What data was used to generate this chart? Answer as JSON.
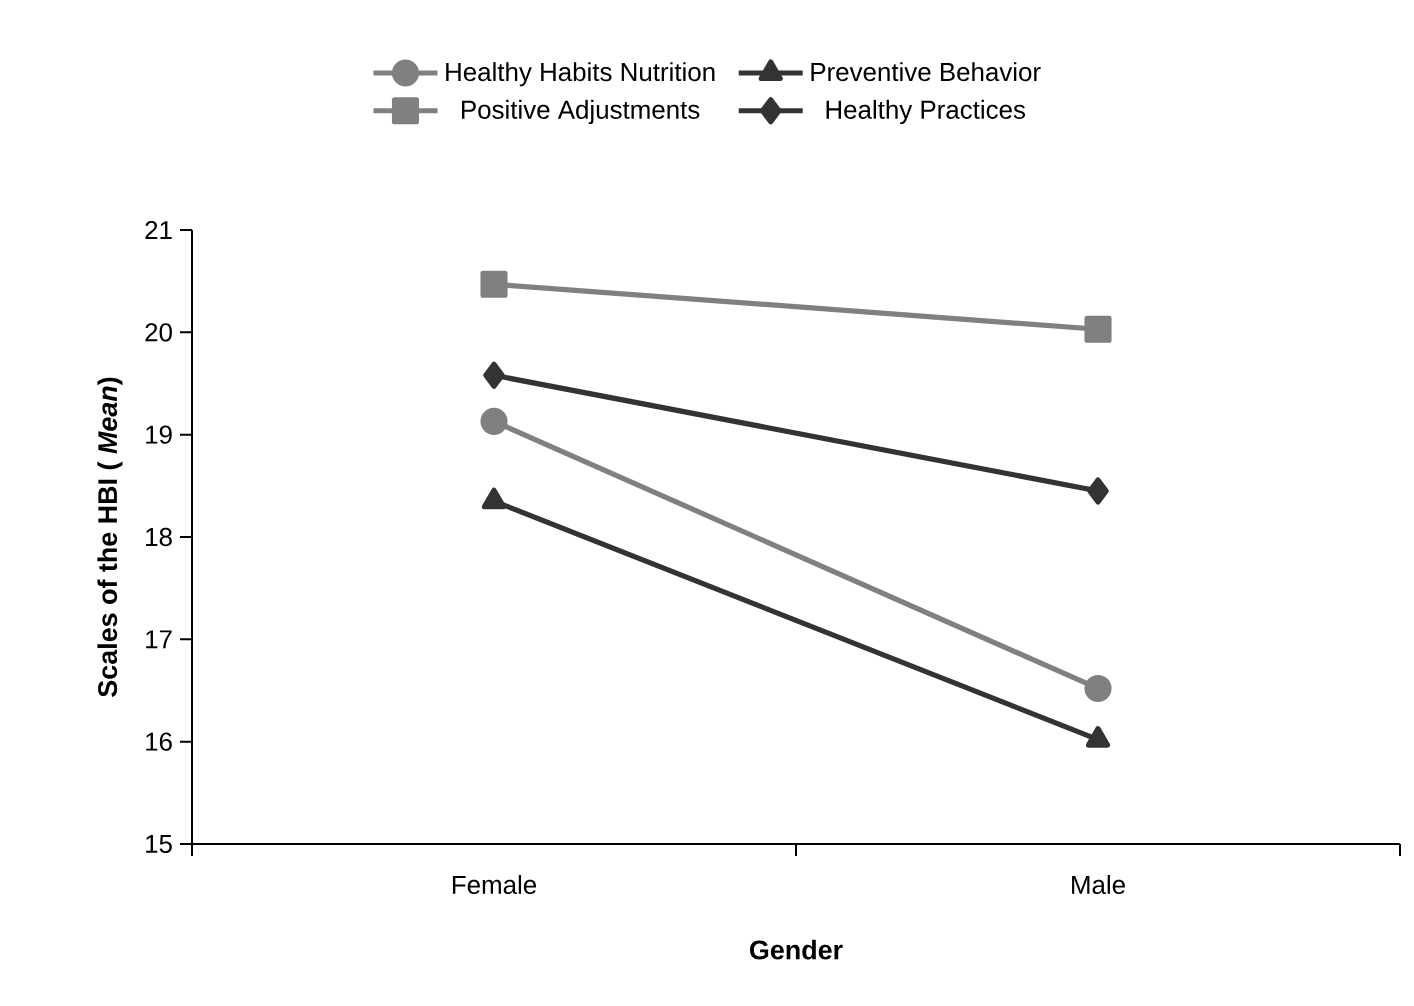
{
  "chart_data": {
    "type": "line",
    "xlabel": "Gender",
    "ylabel": "Scales of the HBI ( *Mean*)",
    "categories": [
      "Female",
      "Male"
    ],
    "ylim": [
      15,
      21
    ],
    "yticks": [
      15,
      16,
      17,
      18,
      19,
      20,
      21
    ],
    "legend": "top",
    "grid": false,
    "series": [
      {
        "name": "Healthy Habits Nutrition",
        "color": "#808080",
        "marker": "circle",
        "values": [
          19.13,
          16.52
        ]
      },
      {
        "name": "Preventive Behavior",
        "color": "#333333",
        "marker": "triangle",
        "values": [
          18.35,
          16.02
        ]
      },
      {
        "name": "Positive Adjustments",
        "color": "#808080",
        "marker": "square",
        "values": [
          20.47,
          20.03
        ]
      },
      {
        "name": "Healthy Practices",
        "color": "#333333",
        "marker": "diamond",
        "values": [
          19.58,
          18.45
        ]
      }
    ]
  }
}
